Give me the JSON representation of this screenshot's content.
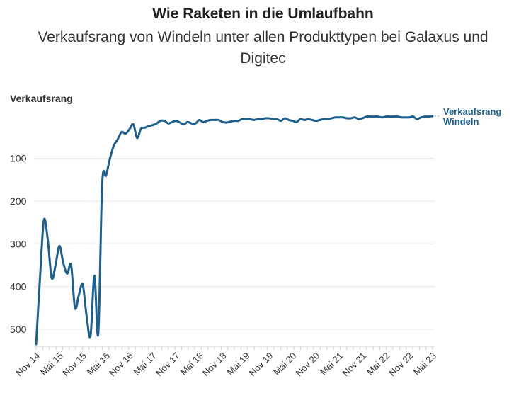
{
  "chart_data": {
    "type": "line",
    "title": "Wie Raketen in die Umlaufbahn",
    "subtitle": "Verkaufsrang von Windeln unter allen Produkttypen bei Galaxus und Digitec",
    "ylabel": "Verkaufsrang",
    "y_inverted": true,
    "ylim": [
      1,
      540
    ],
    "yticks": [
      100,
      200,
      300,
      400,
      500
    ],
    "xticks": [
      "Nov 14",
      "Mai 15",
      "Nov 15",
      "Mai 16",
      "Nov 16",
      "Mai 17",
      "Nov 17",
      "Mai 18",
      "Nov 18",
      "Mai 19",
      "Nov 19",
      "Mai 20",
      "Nov 20",
      "Mai 21",
      "Nov 21",
      "Mai 22",
      "Nov 22",
      "Mai 23"
    ],
    "grid": "horizontal",
    "series_label": [
      "Verkaufsrang",
      "Windeln"
    ],
    "colors": {
      "line": "#1f5f8b",
      "grid": "#e6e6e6"
    },
    "series": [
      {
        "name": "Verkaufsrang Windeln",
        "x": [
          0,
          1,
          2,
          3,
          4,
          5,
          6,
          7,
          8,
          9,
          10,
          11,
          12,
          13,
          14,
          15,
          16,
          17,
          18,
          19,
          20,
          21,
          22,
          23,
          24,
          25,
          26,
          27,
          28,
          29,
          30,
          31,
          32,
          33,
          34,
          35,
          36,
          37,
          38,
          39,
          40,
          41,
          42,
          43,
          44,
          45,
          46,
          47,
          48,
          49,
          50,
          51,
          52,
          53,
          54,
          55,
          56,
          57,
          58,
          59,
          60,
          61,
          62,
          63,
          64,
          65,
          66,
          67,
          68,
          69,
          70,
          71,
          72,
          73,
          74,
          75,
          76,
          77,
          78,
          79,
          80,
          81,
          82,
          83,
          84,
          85,
          86,
          87,
          88,
          89,
          90,
          91,
          92,
          93,
          94,
          95,
          96,
          97,
          98,
          99,
          100,
          101,
          102
        ],
        "y": [
          535,
          380,
          245,
          290,
          380,
          350,
          305,
          345,
          370,
          350,
          450,
          420,
          395,
          470,
          515,
          375,
          510,
          160,
          140,
          100,
          70,
          55,
          38,
          42,
          32,
          20,
          52,
          30,
          28,
          24,
          22,
          18,
          12,
          12,
          18,
          15,
          12,
          16,
          20,
          15,
          18,
          18,
          10,
          15,
          12,
          10,
          10,
          10,
          15,
          16,
          14,
          12,
          12,
          8,
          8,
          8,
          10,
          8,
          8,
          6,
          6,
          8,
          8,
          12,
          6,
          10,
          12,
          15,
          8,
          10,
          8,
          10,
          12,
          10,
          8,
          8,
          6,
          4,
          4,
          4,
          6,
          6,
          4,
          8,
          6,
          2,
          2,
          2,
          2,
          4,
          2,
          2,
          2,
          2,
          4,
          4,
          4,
          2,
          8,
          4,
          2,
          2,
          1
        ]
      }
    ]
  }
}
